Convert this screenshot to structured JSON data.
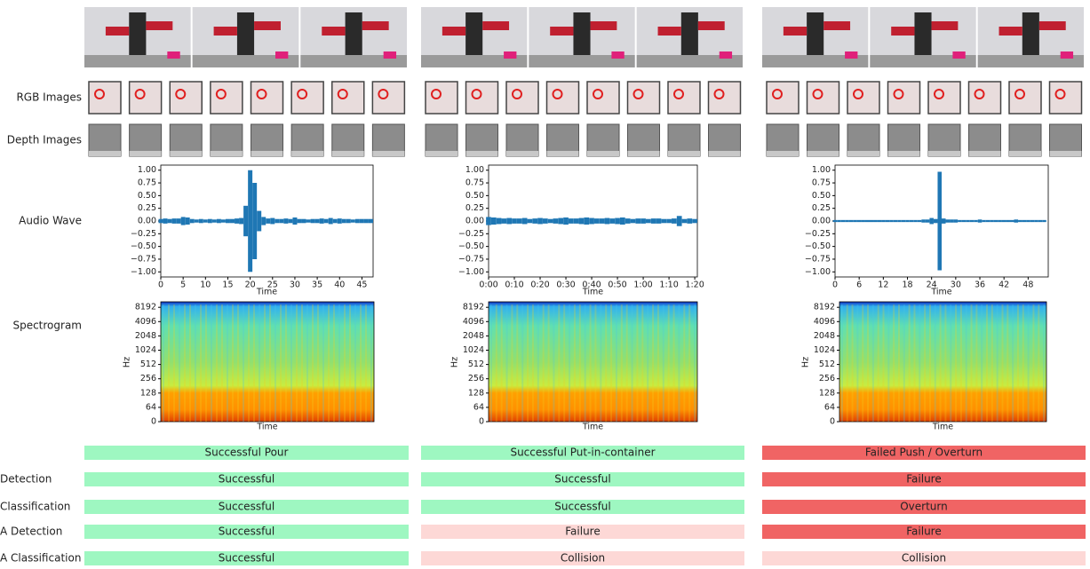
{
  "row_labels": {
    "rgb": "RGB Images",
    "depth": "Depth Images",
    "audio": "Audio Wave",
    "spectrogram": "Spectrogram"
  },
  "status_labels": [
    "Detection",
    "Classification",
    "A Detection",
    "A Classification"
  ],
  "columns": [
    {
      "task": {
        "text": "Successful Pour",
        "color": "#9ef7c1"
      },
      "statuses": [
        {
          "text": "Successful",
          "color": "#9ef7c1"
        },
        {
          "text": "Successful",
          "color": "#9ef7c1"
        },
        {
          "text": "Successful",
          "color": "#9ef7c1"
        },
        {
          "text": "Successful",
          "color": "#9ef7c1"
        }
      ],
      "audio": {
        "type": "line",
        "xlabel": "Time",
        "color": "#1f77b4",
        "xlim": [
          0,
          47.5
        ],
        "xticks": [
          0,
          5,
          10,
          15,
          20,
          25,
          30,
          35,
          40,
          45
        ],
        "ylim": [
          -1.1,
          1.1
        ],
        "yticks": [
          {
            "value": 1,
            "label": "1.00"
          },
          {
            "value": 0.75,
            "label": "0.75"
          },
          {
            "value": 0.5,
            "label": "0.50"
          },
          {
            "value": 0.25,
            "label": "0.25"
          },
          {
            "value": 0,
            "label": "0.00"
          },
          {
            "value": -0.25,
            "label": "−0.25"
          },
          {
            "value": -0.5,
            "label": "−0.50"
          },
          {
            "value": -0.75,
            "label": "−0.75"
          },
          {
            "value": -1,
            "label": "−1.00"
          }
        ],
        "x": [
          0,
          1,
          2,
          3,
          4,
          5,
          6,
          7,
          8,
          9,
          10,
          11,
          12,
          13,
          14,
          15,
          16,
          17,
          18,
          19,
          20,
          21,
          22,
          23,
          24,
          25,
          26,
          27,
          28,
          29,
          30,
          31,
          32,
          33,
          34,
          35,
          36,
          37,
          38,
          39,
          40,
          41,
          42,
          43,
          44,
          45,
          46,
          47
        ],
        "values": [
          0.04,
          0.05,
          0.04,
          0.05,
          0.05,
          0.08,
          0.07,
          0.04,
          0.03,
          0.04,
          0.03,
          0.04,
          0.03,
          0.04,
          0.03,
          0.04,
          0.04,
          0.05,
          0.06,
          0.3,
          1.0,
          0.75,
          0.2,
          0.08,
          0.05,
          0.06,
          0.04,
          0.04,
          0.05,
          0.04,
          0.07,
          0.04,
          0.04,
          0.03,
          0.04,
          0.04,
          0.05,
          0.04,
          0.06,
          0.04,
          0.05,
          0.04,
          0.04,
          0.03,
          0.04,
          0.04,
          0.04,
          0.04
        ]
      },
      "spectrogram": {
        "xlabel": "Time",
        "ylabel": "Hz",
        "yticks": [
          0,
          64,
          128,
          256,
          512,
          1024,
          2048,
          4096,
          8192
        ]
      }
    },
    {
      "task": {
        "text": "Successful Put-in-container",
        "color": "#9ef7c1"
      },
      "statuses": [
        {
          "text": "Successful",
          "color": "#9ef7c1"
        },
        {
          "text": "Successful",
          "color": "#9ef7c1"
        },
        {
          "text": "Failure",
          "color": "#fdd8d6"
        },
        {
          "text": "Collision",
          "color": "#fdd8d6"
        }
      ],
      "audio": {
        "type": "line",
        "xlabel": "Time",
        "color": "#1f77b4",
        "xlim": [
          0,
          81
        ],
        "xticks": [
          {
            "value": 0,
            "label": "0:00"
          },
          {
            "value": 10,
            "label": "0:10"
          },
          {
            "value": 20,
            "label": "0:20"
          },
          {
            "value": 30,
            "label": "0:30"
          },
          {
            "value": 40,
            "label": "0:40"
          },
          {
            "value": 50,
            "label": "0:50"
          },
          {
            "value": 60,
            "label": "1:00"
          },
          {
            "value": 70,
            "label": "1:10"
          },
          {
            "value": 80,
            "label": "1:20"
          }
        ],
        "ylim": [
          -1.1,
          1.1
        ],
        "yticks": [
          {
            "value": 1,
            "label": "1.00"
          },
          {
            "value": 0.75,
            "label": "0.75"
          },
          {
            "value": 0.5,
            "label": "0.50"
          },
          {
            "value": 0.25,
            "label": "0.25"
          },
          {
            "value": 0,
            "label": "0.00"
          },
          {
            "value": -0.25,
            "label": "−0.25"
          },
          {
            "value": -0.5,
            "label": "−0.50"
          },
          {
            "value": -0.75,
            "label": "−0.75"
          },
          {
            "value": -1,
            "label": "−1.00"
          }
        ],
        "x": [
          0,
          2,
          4,
          6,
          8,
          10,
          12,
          14,
          16,
          18,
          20,
          22,
          24,
          26,
          28,
          30,
          32,
          34,
          36,
          38,
          40,
          42,
          44,
          46,
          48,
          50,
          52,
          54,
          56,
          58,
          60,
          62,
          64,
          66,
          68,
          70,
          72,
          74,
          76,
          78,
          80
        ],
        "values": [
          0.08,
          0.07,
          0.06,
          0.05,
          0.06,
          0.05,
          0.05,
          0.06,
          0.04,
          0.05,
          0.06,
          0.05,
          0.04,
          0.05,
          0.06,
          0.07,
          0.05,
          0.05,
          0.06,
          0.07,
          0.06,
          0.05,
          0.05,
          0.06,
          0.05,
          0.06,
          0.07,
          0.05,
          0.04,
          0.05,
          0.05,
          0.04,
          0.05,
          0.05,
          0.04,
          0.04,
          0.05,
          0.1,
          0.04,
          0.05,
          0.04
        ]
      },
      "spectrogram": {
        "xlabel": "Time",
        "ylabel": "Hz",
        "yticks": [
          0,
          64,
          128,
          256,
          512,
          1024,
          2048,
          4096,
          8192
        ]
      }
    },
    {
      "task": {
        "text": "Failed Push / Overturn",
        "color": "#f06464"
      },
      "statuses": [
        {
          "text": "Failure",
          "color": "#f06464"
        },
        {
          "text": "Overturn",
          "color": "#f06464"
        },
        {
          "text": "Failure",
          "color": "#f06464"
        },
        {
          "text": "Collision",
          "color": "#fdd8d6"
        }
      ],
      "audio": {
        "type": "line",
        "xlabel": "Time",
        "color": "#1f77b4",
        "xlim": [
          0,
          53
        ],
        "xticks": [
          0,
          6,
          12,
          18,
          24,
          30,
          36,
          42,
          48
        ],
        "ylim": [
          -1.1,
          1.1
        ],
        "yticks": [
          {
            "value": 1,
            "label": "1.00"
          },
          {
            "value": 0.75,
            "label": "0.75"
          },
          {
            "value": 0.5,
            "label": "0.50"
          },
          {
            "value": 0.25,
            "label": "0.25"
          },
          {
            "value": 0,
            "label": "0.00"
          },
          {
            "value": -0.25,
            "label": "−0.25"
          },
          {
            "value": -0.5,
            "label": "−0.50"
          },
          {
            "value": -0.75,
            "label": "−0.75"
          },
          {
            "value": -1,
            "label": "−1.00"
          }
        ],
        "x": [
          0,
          1,
          2,
          3,
          4,
          5,
          6,
          7,
          8,
          9,
          10,
          11,
          12,
          13,
          14,
          15,
          16,
          17,
          18,
          19,
          20,
          21,
          22,
          23,
          24,
          25,
          26,
          27,
          28,
          29,
          30,
          31,
          32,
          33,
          34,
          35,
          36,
          37,
          38,
          39,
          40,
          41,
          42,
          43,
          44,
          45,
          46,
          47,
          48,
          49,
          50,
          51,
          52
        ],
        "values": [
          0.02,
          0.02,
          0.02,
          0.02,
          0.02,
          0.02,
          0.02,
          0.02,
          0.02,
          0.02,
          0.02,
          0.02,
          0.02,
          0.02,
          0.02,
          0.02,
          0.02,
          0.02,
          0.02,
          0.02,
          0.02,
          0.02,
          0.03,
          0.03,
          0.06,
          0.04,
          0.97,
          0.05,
          0.03,
          0.03,
          0.03,
          0.02,
          0.02,
          0.02,
          0.02,
          0.02,
          0.03,
          0.02,
          0.02,
          0.02,
          0.02,
          0.02,
          0.02,
          0.02,
          0.02,
          0.03,
          0.02,
          0.02,
          0.02,
          0.02,
          0.02,
          0.02,
          0.02
        ]
      },
      "spectrogram": {
        "xlabel": "Time",
        "ylabel": "Hz",
        "yticks": [
          0,
          64,
          128,
          256,
          512,
          1024,
          2048,
          4096,
          8192
        ]
      }
    }
  ]
}
